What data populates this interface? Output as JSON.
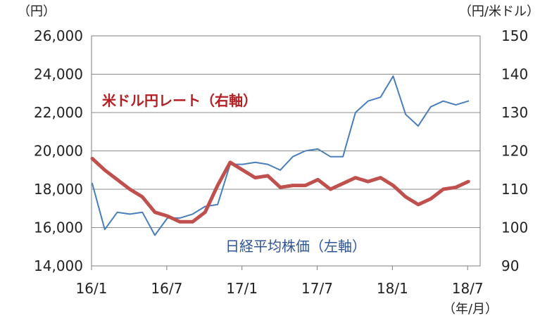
{
  "chart_data": {
    "type": "line",
    "left_axis_unit": "（円）",
    "right_axis_unit": "（円/米ドル）",
    "x_unit": "（年/月）",
    "x_tick_labels": [
      "16/1",
      "16/7",
      "17/1",
      "17/7",
      "18/1",
      "18/7"
    ],
    "left_ylim": [
      14000,
      26000
    ],
    "left_ticks": [
      "14,000",
      "16,000",
      "18,000",
      "20,000",
      "22,000",
      "24,000",
      "26,000"
    ],
    "right_ylim": [
      90,
      150
    ],
    "right_ticks": [
      "90",
      "100",
      "110",
      "120",
      "130",
      "140",
      "150"
    ],
    "grid": true,
    "series": [
      {
        "name": "日経平均株価（左軸）",
        "axis": "left",
        "color": "#4a7ebb",
        "x": [
          "2016-01",
          "2016-02",
          "2016-03",
          "2016-04",
          "2016-05",
          "2016-06",
          "2016-07",
          "2016-08",
          "2016-09",
          "2016-10",
          "2016-11",
          "2016-12",
          "2017-01",
          "2017-02",
          "2017-03",
          "2017-04",
          "2017-05",
          "2017-06",
          "2017-07",
          "2017-08",
          "2017-09",
          "2017-10",
          "2017-11",
          "2017-12",
          "2018-01",
          "2018-02",
          "2018-03",
          "2018-04",
          "2018-05",
          "2018-06",
          "2018-07"
        ],
        "values": [
          18300,
          15900,
          16800,
          16700,
          16800,
          15600,
          16500,
          16500,
          16700,
          17100,
          17200,
          19300,
          19300,
          19400,
          19300,
          19000,
          19700,
          20000,
          20100,
          19700,
          19700,
          22000,
          22600,
          22800,
          23900,
          21900,
          21300,
          22300,
          22600,
          22400,
          22600
        ]
      },
      {
        "name": "米ドル円レート（右軸）",
        "axis": "right",
        "color": "#c0504d",
        "x": [
          "2016-01",
          "2016-02",
          "2016-03",
          "2016-04",
          "2016-05",
          "2016-06",
          "2016-07",
          "2016-08",
          "2016-09",
          "2016-10",
          "2016-11",
          "2016-12",
          "2017-01",
          "2017-02",
          "2017-03",
          "2017-04",
          "2017-05",
          "2017-06",
          "2017-07",
          "2017-08",
          "2017-09",
          "2017-10",
          "2017-11",
          "2017-12",
          "2018-01",
          "2018-02",
          "2018-03",
          "2018-04",
          "2018-05",
          "2018-06",
          "2018-07"
        ],
        "values": [
          118,
          115,
          112.5,
          110,
          108,
          104,
          103,
          101.5,
          101.5,
          104,
          111,
          117,
          115,
          113,
          113.5,
          110.5,
          111,
          111,
          112.5,
          110,
          111.5,
          113,
          112,
          113,
          111,
          108,
          106,
          107.5,
          110,
          110.5,
          112
        ]
      }
    ],
    "annotations": [
      {
        "text": "米ドル円レート（右軸）",
        "series": "usdjpy"
      },
      {
        "text": "日経平均株価（左軸）",
        "series": "nikkei"
      }
    ]
  }
}
